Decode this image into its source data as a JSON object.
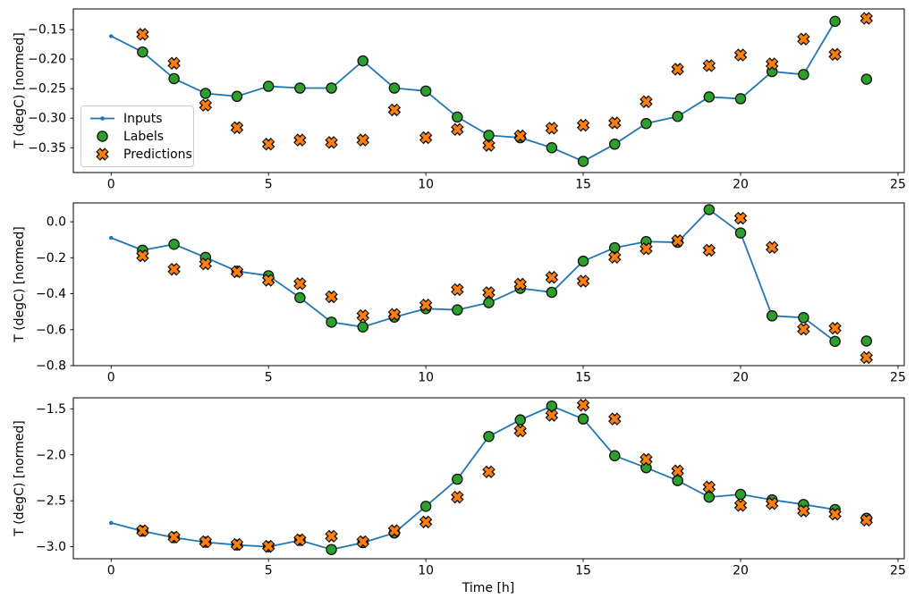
{
  "figure": {
    "background": "#ffffff",
    "ylabel": "T (degC) [normed]",
    "xlabel": "Time [h]"
  },
  "legend": {
    "position": "upper left of subplot 1",
    "items": [
      {
        "label": "Inputs",
        "marker": "line-with-dot",
        "color": "#1f77b4"
      },
      {
        "label": "Labels",
        "marker": "circle",
        "color": "#2ca02c"
      },
      {
        "label": "Predictions",
        "marker": "X",
        "color": "#ff7f0e"
      }
    ]
  },
  "colors": {
    "inputs_line": "#1f77b4",
    "labels_fill": "#2ca02c",
    "predictions_fill": "#ff7f0e",
    "marker_edge": "#111111",
    "spine": "#000000",
    "legend_border": "#cccccc"
  },
  "chart_data": [
    {
      "type": "line",
      "title": "",
      "ylabel": "T (degC) [normed]",
      "xlabel": "",
      "grid": false,
      "xlim": [
        -1.2,
        25.2
      ],
      "ylim": [
        -0.392,
        -0.115
      ],
      "x_ticks": [
        0,
        5,
        10,
        15,
        20,
        25
      ],
      "x_tick_labels": [
        "0",
        "5",
        "10",
        "15",
        "20",
        "25"
      ],
      "y_ticks": [
        -0.15,
        -0.2,
        -0.25,
        -0.3,
        -0.35
      ],
      "y_tick_labels": [
        "−0.15",
        "−0.20",
        "−0.25",
        "−0.30",
        "−0.35"
      ],
      "series": [
        {
          "name": "Inputs",
          "type": "line",
          "marker": "dot",
          "color": "#1f77b4",
          "x": [
            0,
            1,
            2,
            3,
            4,
            5,
            6,
            7,
            8,
            9,
            10,
            11,
            12,
            13,
            14,
            15,
            16,
            17,
            18,
            19,
            20,
            21,
            22,
            23
          ],
          "y": [
            -0.161,
            -0.188,
            -0.233,
            -0.258,
            -0.263,
            -0.246,
            -0.249,
            -0.249,
            -0.203,
            -0.249,
            -0.254,
            -0.298,
            -0.329,
            -0.333,
            -0.35,
            -0.373,
            -0.344,
            -0.309,
            -0.297,
            -0.264,
            -0.267,
            -0.221,
            -0.226,
            -0.136
          ]
        },
        {
          "name": "Labels",
          "type": "scatter",
          "marker": "circle",
          "color": "#2ca02c",
          "x": [
            1,
            2,
            3,
            4,
            5,
            6,
            7,
            8,
            9,
            10,
            11,
            12,
            13,
            14,
            15,
            16,
            17,
            18,
            19,
            20,
            21,
            22,
            23,
            24
          ],
          "y": [
            -0.188,
            -0.233,
            -0.258,
            -0.263,
            -0.246,
            -0.249,
            -0.249,
            -0.203,
            -0.249,
            -0.254,
            -0.298,
            -0.329,
            -0.333,
            -0.35,
            -0.373,
            -0.344,
            -0.309,
            -0.297,
            -0.264,
            -0.267,
            -0.221,
            -0.226,
            -0.136,
            -0.234
          ]
        },
        {
          "name": "Predictions",
          "type": "scatter",
          "marker": "X",
          "color": "#ff7f0e",
          "x": [
            1,
            2,
            3,
            4,
            5,
            6,
            7,
            8,
            9,
            10,
            11,
            12,
            13,
            14,
            15,
            16,
            17,
            18,
            19,
            20,
            21,
            22,
            23,
            24
          ],
          "y": [
            -0.158,
            -0.207,
            -0.278,
            -0.316,
            -0.344,
            -0.337,
            -0.341,
            -0.337,
            -0.286,
            -0.333,
            -0.319,
            -0.346,
            -0.33,
            -0.317,
            -0.312,
            -0.308,
            -0.272,
            -0.217,
            -0.211,
            -0.193,
            -0.208,
            -0.166,
            -0.192,
            -0.131
          ]
        }
      ]
    },
    {
      "type": "line",
      "title": "",
      "ylabel": "T (degC) [normed]",
      "xlabel": "",
      "grid": false,
      "xlim": [
        -1.2,
        25.2
      ],
      "ylim": [
        -0.8,
        0.105
      ],
      "x_ticks": [
        0,
        5,
        10,
        15,
        20,
        25
      ],
      "x_tick_labels": [
        "0",
        "5",
        "10",
        "15",
        "20",
        "25"
      ],
      "y_ticks": [
        0.0,
        -0.2,
        -0.4,
        -0.6,
        -0.8
      ],
      "y_tick_labels": [
        "0.0",
        "−0.2",
        "−0.4",
        "−0.6",
        "−0.8"
      ],
      "series": [
        {
          "name": "Inputs",
          "type": "line",
          "marker": "dot",
          "color": "#1f77b4",
          "x": [
            0,
            1,
            2,
            3,
            4,
            5,
            6,
            7,
            8,
            9,
            10,
            11,
            12,
            13,
            14,
            15,
            16,
            17,
            18,
            19,
            20,
            21,
            22,
            23
          ],
          "y": [
            -0.089,
            -0.158,
            -0.125,
            -0.198,
            -0.275,
            -0.3,
            -0.422,
            -0.558,
            -0.585,
            -0.53,
            -0.483,
            -0.49,
            -0.45,
            -0.37,
            -0.392,
            -0.219,
            -0.144,
            -0.11,
            -0.114,
            0.068,
            -0.062,
            -0.523,
            -0.533,
            -0.665
          ]
        },
        {
          "name": "Labels",
          "type": "scatter",
          "marker": "circle",
          "color": "#2ca02c",
          "x": [
            1,
            2,
            3,
            4,
            5,
            6,
            7,
            8,
            9,
            10,
            11,
            12,
            13,
            14,
            15,
            16,
            17,
            18,
            19,
            20,
            21,
            22,
            23,
            24
          ],
          "y": [
            -0.158,
            -0.125,
            -0.198,
            -0.275,
            -0.3,
            -0.422,
            -0.558,
            -0.585,
            -0.53,
            -0.483,
            -0.49,
            -0.45,
            -0.37,
            -0.392,
            -0.219,
            -0.144,
            -0.11,
            -0.114,
            0.068,
            -0.062,
            -0.523,
            -0.533,
            -0.665,
            -0.663
          ]
        },
        {
          "name": "Predictions",
          "type": "scatter",
          "marker": "X",
          "color": "#ff7f0e",
          "x": [
            1,
            2,
            3,
            4,
            5,
            6,
            7,
            8,
            9,
            10,
            11,
            12,
            13,
            14,
            15,
            16,
            17,
            18,
            19,
            20,
            21,
            22,
            23,
            24
          ],
          "y": [
            -0.189,
            -0.264,
            -0.234,
            -0.278,
            -0.325,
            -0.344,
            -0.417,
            -0.522,
            -0.515,
            -0.463,
            -0.377,
            -0.394,
            -0.347,
            -0.309,
            -0.33,
            -0.197,
            -0.15,
            -0.105,
            -0.158,
            0.02,
            -0.142,
            -0.597,
            -0.592,
            -0.755
          ]
        }
      ]
    },
    {
      "type": "line",
      "title": "",
      "ylabel": "T (degC) [normed]",
      "xlabel": "Time [h]",
      "grid": false,
      "xlim": [
        -1.2,
        25.2
      ],
      "ylim": [
        -3.13,
        -1.38
      ],
      "x_ticks": [
        0,
        5,
        10,
        15,
        20,
        25
      ],
      "x_tick_labels": [
        "0",
        "5",
        "10",
        "15",
        "20",
        "25"
      ],
      "y_ticks": [
        -1.5,
        -2.0,
        -2.5,
        -3.0
      ],
      "y_tick_labels": [
        "−1.5",
        "−2.0",
        "−2.5",
        "−3.0"
      ],
      "series": [
        {
          "name": "Inputs",
          "type": "line",
          "marker": "dot",
          "color": "#1f77b4",
          "x": [
            0,
            1,
            2,
            3,
            4,
            5,
            6,
            7,
            8,
            9,
            10,
            11,
            12,
            13,
            14,
            15,
            16,
            17,
            18,
            19,
            20,
            21,
            22,
            23
          ],
          "y": [
            -2.74,
            -2.83,
            -2.9,
            -2.95,
            -2.98,
            -3.0,
            -2.93,
            -3.03,
            -2.955,
            -2.85,
            -2.56,
            -2.265,
            -1.8,
            -1.62,
            -1.47,
            -1.61,
            -2.01,
            -2.14,
            -2.28,
            -2.46,
            -2.43,
            -2.49,
            -2.54,
            -2.595
          ]
        },
        {
          "name": "Labels",
          "type": "scatter",
          "marker": "circle",
          "color": "#2ca02c",
          "x": [
            1,
            2,
            3,
            4,
            5,
            6,
            7,
            8,
            9,
            10,
            11,
            12,
            13,
            14,
            15,
            16,
            17,
            18,
            19,
            20,
            21,
            22,
            23,
            24
          ],
          "y": [
            -2.83,
            -2.9,
            -2.95,
            -2.98,
            -3.0,
            -2.93,
            -3.03,
            -2.955,
            -2.85,
            -2.56,
            -2.265,
            -1.8,
            -1.62,
            -1.47,
            -1.61,
            -2.01,
            -2.14,
            -2.28,
            -2.46,
            -2.43,
            -2.49,
            -2.54,
            -2.595,
            -2.69
          ]
        },
        {
          "name": "Predictions",
          "type": "scatter",
          "marker": "X",
          "color": "#ff7f0e",
          "x": [
            1,
            2,
            3,
            4,
            5,
            6,
            7,
            8,
            9,
            10,
            11,
            12,
            13,
            14,
            15,
            16,
            17,
            18,
            19,
            20,
            21,
            22,
            23,
            24
          ],
          "y": [
            -2.825,
            -2.895,
            -2.945,
            -2.975,
            -2.995,
            -2.925,
            -2.885,
            -2.945,
            -2.825,
            -2.73,
            -2.46,
            -2.185,
            -1.74,
            -1.57,
            -1.46,
            -1.61,
            -2.05,
            -2.175,
            -2.35,
            -2.55,
            -2.53,
            -2.61,
            -2.645,
            -2.71
          ]
        }
      ]
    }
  ]
}
